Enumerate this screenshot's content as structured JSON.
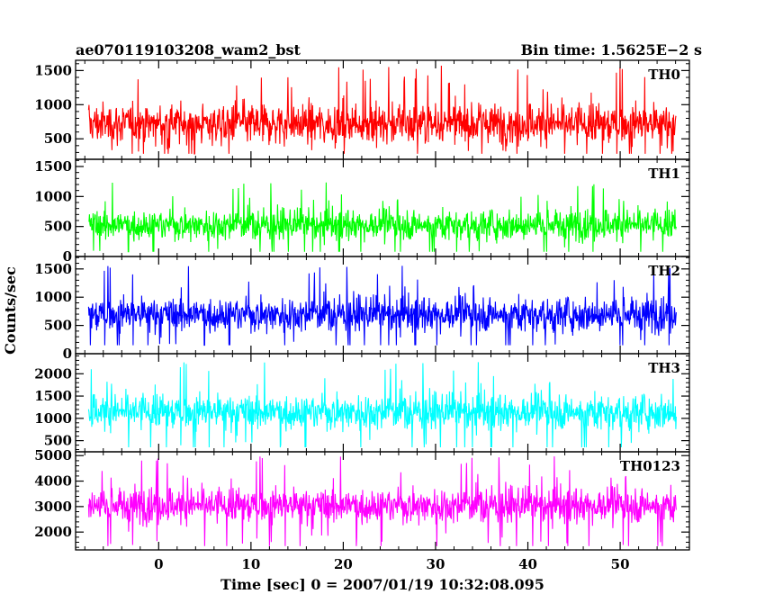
{
  "chart_data": {
    "type": "line",
    "title_left": "ae070119103208_wam2_bst",
    "title_right": "Bin time: 1.5625E−2 s",
    "xlabel": "Time [sec] 0 = 2007/01/19 10:32:08.095",
    "ylabel": "Counts/sec",
    "xlim": [
      -9,
      57.5
    ],
    "x_ticks": [
      0,
      10,
      20,
      30,
      40,
      50
    ],
    "x_minor_step": 2,
    "data_x_range": [
      -7.6,
      56.1
    ],
    "grid": false,
    "panels": [
      {
        "name": "TH0",
        "color": "#ff0000",
        "ylim": [
          200,
          1650
        ],
        "y_ticks": [
          500,
          1000,
          1500
        ],
        "y_minor_step": 100,
        "mean": 720,
        "spread": 390,
        "min": 280,
        "max": 1650
      },
      {
        "name": "TH1",
        "color": "#00ff00",
        "ylim": [
          0,
          1620
        ],
        "y_ticks": [
          0,
          500,
          1000,
          1500
        ],
        "y_minor_step": 100,
        "mean": 530,
        "spread": 330,
        "min": 80,
        "max": 1600
      },
      {
        "name": "TH2",
        "color": "#0000ff",
        "ylim": [
          0,
          1720
        ],
        "y_ticks": [
          0,
          500,
          1000,
          1500
        ],
        "y_minor_step": 100,
        "mean": 700,
        "spread": 400,
        "min": 150,
        "max": 1720
      },
      {
        "name": "TH3",
        "color": "#00ffff",
        "ylim": [
          250,
          2450
        ],
        "y_ticks": [
          500,
          1000,
          1500,
          2000
        ],
        "y_minor_step": 100,
        "mean": 1150,
        "spread": 520,
        "min": 350,
        "max": 2450
      },
      {
        "name": "TH0123",
        "color": "#ff00ff",
        "ylim": [
          1300,
          5150
        ],
        "y_ticks": [
          2000,
          3000,
          4000,
          5000
        ],
        "y_minor_step": 200,
        "mean": 3050,
        "spread": 900,
        "min": 1450,
        "max": 5050
      }
    ]
  }
}
